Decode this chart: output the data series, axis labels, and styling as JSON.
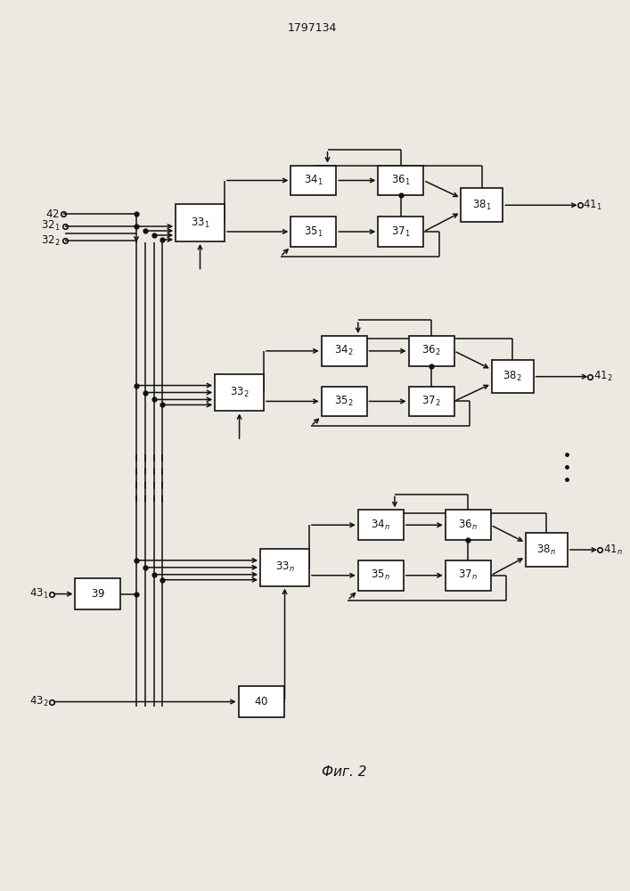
{
  "title": "1797134",
  "caption": "Фиг. 2",
  "bg": "#ede9e2",
  "lc": "#111111",
  "bc": "#ffffff"
}
